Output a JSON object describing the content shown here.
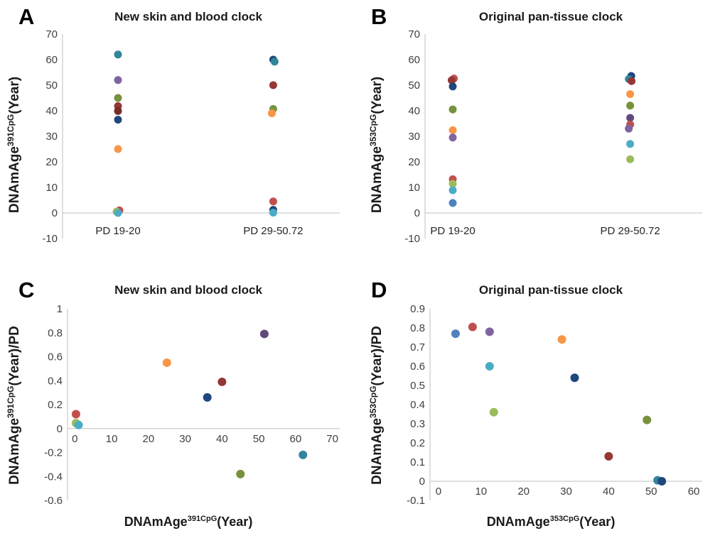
{
  "figure": {
    "background": "#ffffff"
  },
  "axis_style": {
    "line_color": "#BFBFBF",
    "tick_label_color": "#404040",
    "title_color": "#1A1A1A"
  },
  "chart_data": [
    {
      "panel_label": "A",
      "type": "scatter",
      "title": "New skin and blood clock",
      "ylabel": {
        "prefix": "DNAmAge",
        "sup": "391CpG",
        "suffix": "(Year)"
      },
      "x_mode": "category",
      "categories": [
        "PD 19-20",
        "PD 29-50.72"
      ],
      "cat_positions": [
        0.2,
        0.76
      ],
      "ylim": [
        -10,
        70
      ],
      "yticks": [
        70,
        60,
        50,
        40,
        30,
        20,
        10,
        0,
        -10
      ],
      "grid": false,
      "legend": false,
      "points": [
        {
          "cat": 0,
          "y": 62,
          "color": "#31859C"
        },
        {
          "cat": 0,
          "y": 52,
          "color": "#8064A2"
        },
        {
          "cat": 0,
          "y": 45,
          "color": "#76923C"
        },
        {
          "cat": 0,
          "y": 41.8,
          "color": "#953735"
        },
        {
          "cat": 0,
          "y": 39.9,
          "color": "#772C2A"
        },
        {
          "cat": 0,
          "y": 36.5,
          "color": "#1F497D"
        },
        {
          "cat": 0,
          "y": 25,
          "color": "#F79646"
        },
        {
          "cat": 0,
          "y": 1.0,
          "color": "#C0504D",
          "dx": 0.005
        },
        {
          "cat": 0,
          "y": 0.5,
          "color": "#9BBB59",
          "dx": -0.005
        },
        {
          "cat": 0,
          "y": 0,
          "color": "#4BACC6"
        },
        {
          "cat": 1,
          "y": 60.0,
          "color": "#1F497D"
        },
        {
          "cat": 1,
          "y": 59.2,
          "color": "#31859C",
          "dx": 0.005
        },
        {
          "cat": 1,
          "y": 50,
          "color": "#953735"
        },
        {
          "cat": 1,
          "y": 40.7,
          "color": "#76923C"
        },
        {
          "cat": 1,
          "y": 39,
          "color": "#F79646",
          "dx": -0.005
        },
        {
          "cat": 1,
          "y": 4.5,
          "color": "#C0504D"
        },
        {
          "cat": 1,
          "y": 1.2,
          "color": "#1F497D"
        },
        {
          "cat": 1,
          "y": 0.1,
          "color": "#4BACC6"
        }
      ]
    },
    {
      "panel_label": "B",
      "type": "scatter",
      "title": "Original pan-tissue clock",
      "ylabel": {
        "prefix": "DNAmAge",
        "sup": "353CpG",
        "suffix": "(Year)"
      },
      "x_mode": "category",
      "categories": [
        "PD 19-20",
        "PD 29-50.72"
      ],
      "cat_positions": [
        0.1,
        0.74
      ],
      "ylim": [
        -10,
        70
      ],
      "yticks": [
        70,
        60,
        50,
        40,
        30,
        20,
        10,
        0,
        -10
      ],
      "grid": false,
      "legend": false,
      "points": [
        {
          "cat": 0,
          "y": 52.6,
          "color": "#C0504D",
          "dx": 0.004
        },
        {
          "cat": 0,
          "y": 51.9,
          "color": "#953735",
          "dx": -0.004
        },
        {
          "cat": 0,
          "y": 49.5,
          "color": "#1F497D"
        },
        {
          "cat": 0,
          "y": 40.5,
          "color": "#76923C"
        },
        {
          "cat": 0,
          "y": 32.4,
          "color": "#F79646"
        },
        {
          "cat": 0,
          "y": 29.5,
          "color": "#8064A2"
        },
        {
          "cat": 0,
          "y": 13.2,
          "color": "#C0504D"
        },
        {
          "cat": 0,
          "y": 11.4,
          "color": "#9BBB59"
        },
        {
          "cat": 0,
          "y": 8.9,
          "color": "#4BACC6"
        },
        {
          "cat": 0,
          "y": 3.9,
          "color": "#4F81BD"
        },
        {
          "cat": 1,
          "y": 53.6,
          "color": "#1F497D",
          "dx": 0.004
        },
        {
          "cat": 1,
          "y": 52.4,
          "color": "#31859C",
          "dx": -0.005
        },
        {
          "cat": 1,
          "y": 51.6,
          "color": "#953735",
          "dx": 0.005
        },
        {
          "cat": 1,
          "y": 46.5,
          "color": "#F79646"
        },
        {
          "cat": 1,
          "y": 42,
          "color": "#76923C"
        },
        {
          "cat": 1,
          "y": 37.2,
          "color": "#604A7B"
        },
        {
          "cat": 1,
          "y": 34.6,
          "color": "#C0504D"
        },
        {
          "cat": 1,
          "y": 33,
          "color": "#8064A2",
          "dx": -0.005
        },
        {
          "cat": 1,
          "y": 27,
          "color": "#4BACC6"
        },
        {
          "cat": 1,
          "y": 21,
          "color": "#9BBB59"
        }
      ]
    },
    {
      "panel_label": "C",
      "type": "scatter",
      "title": "New skin and blood clock",
      "ylabel": {
        "prefix": "DNAmAge",
        "sup": "391CpG",
        "suffix": "(Year)/PD"
      },
      "xlabel": {
        "prefix": "DNAmAge",
        "sup": "391CpG",
        "suffix": "(Year)"
      },
      "x_mode": "numeric",
      "xlim": [
        -2,
        72
      ],
      "xticks": [
        0,
        10,
        20,
        30,
        40,
        50,
        60,
        70
      ],
      "ylim": [
        -0.6,
        1
      ],
      "yticks": [
        1,
        0.8,
        0.6,
        0.4,
        0.2,
        0,
        -0.2,
        -0.4,
        -0.6
      ],
      "grid": false,
      "legend": false,
      "points": [
        {
          "x": 0.3,
          "y": 0.12,
          "color": "#C0504D"
        },
        {
          "x": 0.3,
          "y": 0.045,
          "color": "#9BBB59"
        },
        {
          "x": 1.0,
          "y": 0.03,
          "color": "#4BACC6"
        },
        {
          "x": 25,
          "y": 0.55,
          "color": "#F79646"
        },
        {
          "x": 36,
          "y": 0.26,
          "color": "#1F497D"
        },
        {
          "x": 40,
          "y": 0.39,
          "color": "#953735"
        },
        {
          "x": 45,
          "y": -0.38,
          "color": "#76923C"
        },
        {
          "x": 51.5,
          "y": 0.79,
          "color": "#604A7B"
        },
        {
          "x": 62,
          "y": -0.22,
          "color": "#31859C"
        }
      ]
    },
    {
      "panel_label": "D",
      "type": "scatter",
      "title": "Original pan-tissue clock",
      "ylabel": {
        "prefix": "DNAmAge",
        "sup": "353CpG",
        "suffix": "(Year)/PD"
      },
      "xlabel": {
        "prefix": "DNAmAge",
        "sup": "353CpG",
        "suffix": "(Year)"
      },
      "x_mode": "numeric",
      "xlim": [
        -2,
        62
      ],
      "xticks": [
        0,
        10,
        20,
        30,
        40,
        50,
        60
      ],
      "ylim": [
        -0.1,
        0.9
      ],
      "yticks": [
        0.9,
        0.8,
        0.7,
        0.6,
        0.5,
        0.4,
        0.3,
        0.2,
        0.1,
        0,
        -0.1
      ],
      "grid": false,
      "legend": false,
      "points": [
        {
          "x": 4,
          "y": 0.77,
          "color": "#4F81BD"
        },
        {
          "x": 8,
          "y": 0.805,
          "color": "#C0504D"
        },
        {
          "x": 12,
          "y": 0.78,
          "color": "#8064A2"
        },
        {
          "x": 12,
          "y": 0.6,
          "color": "#4BACC6"
        },
        {
          "x": 13,
          "y": 0.36,
          "color": "#9BBB59"
        },
        {
          "x": 29,
          "y": 0.74,
          "color": "#F79646"
        },
        {
          "x": 32,
          "y": 0.54,
          "color": "#1F497D"
        },
        {
          "x": 40,
          "y": 0.13,
          "color": "#953735"
        },
        {
          "x": 49,
          "y": 0.32,
          "color": "#76923C"
        },
        {
          "x": 51.5,
          "y": 0.005,
          "color": "#31859C"
        },
        {
          "x": 52.5,
          "y": 0.0,
          "color": "#1F497D"
        }
      ]
    }
  ]
}
